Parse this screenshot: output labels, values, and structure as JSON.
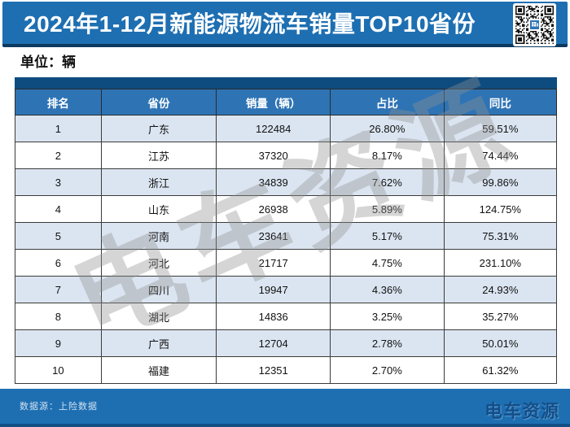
{
  "header": {
    "title": "2024年1-12月新能源物流车销量TOP10省份"
  },
  "unit_label": "单位：辆",
  "watermark": "电车资源",
  "footer": {
    "source": "数据源：上险数据",
    "brand": "电车资源"
  },
  "colors": {
    "band_blue": "#1e6fb2",
    "navy_line": "#0c3a60",
    "cap_blue": "#0e4c80",
    "header_blue": "#2e74b5",
    "alt_row_blue": "#dbe5f1",
    "border_gray": "#3b3b3b",
    "qr_center_blue": "#2e75b6"
  },
  "chart_data": {
    "type": "table",
    "title": "2024年1-12月新能源物流车销量TOP10省份",
    "unit": "辆",
    "source": "上险数据",
    "columns": [
      "排名",
      "省份",
      "销量（辆）",
      "占比",
      "同比"
    ],
    "rows": [
      [
        "1",
        "广东",
        "122484",
        "26.80%",
        "59.51%"
      ],
      [
        "2",
        "江苏",
        "37320",
        "8.17%",
        "74.44%"
      ],
      [
        "3",
        "浙江",
        "34839",
        "7.62%",
        "99.86%"
      ],
      [
        "4",
        "山东",
        "26938",
        "5.89%",
        "124.75%"
      ],
      [
        "5",
        "河南",
        "23641",
        "5.17%",
        "75.31%"
      ],
      [
        "6",
        "河北",
        "21717",
        "4.75%",
        "231.10%"
      ],
      [
        "7",
        "四川",
        "19947",
        "4.36%",
        "24.93%"
      ],
      [
        "8",
        "湖北",
        "14836",
        "3.25%",
        "35.27%"
      ],
      [
        "9",
        "广西",
        "12704",
        "2.78%",
        "50.01%"
      ],
      [
        "10",
        "福建",
        "12351",
        "2.70%",
        "61.32%"
      ]
    ]
  }
}
